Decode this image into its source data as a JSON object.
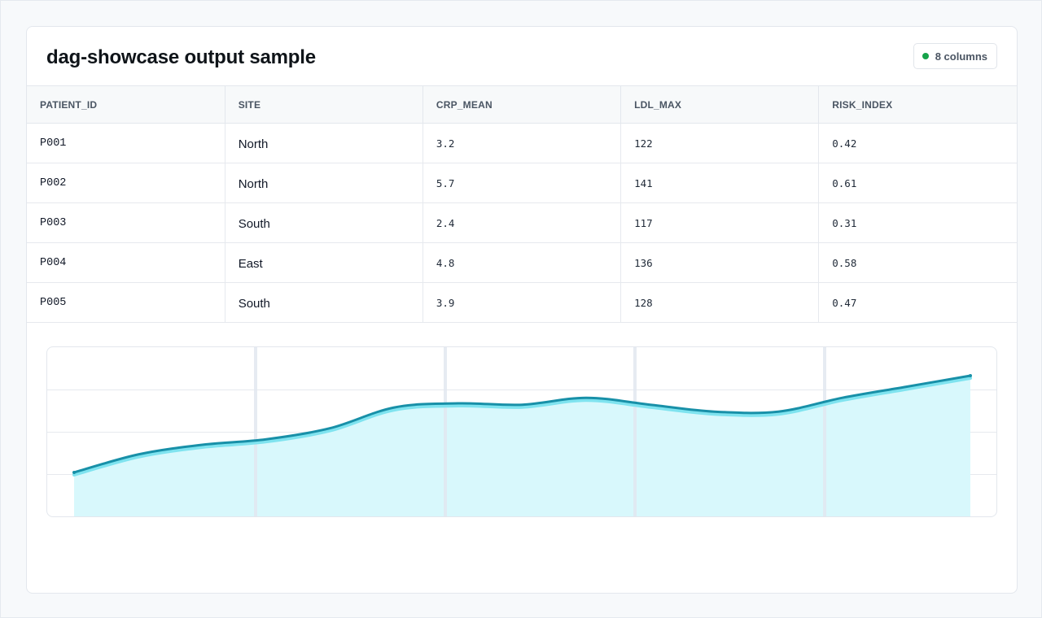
{
  "card": {
    "title": "dag-showcase output sample",
    "badge": {
      "label": "8 columns",
      "dot_color": "#16a34a"
    }
  },
  "table": {
    "columns": [
      "PATIENT_ID",
      "SITE",
      "CRP_MEAN",
      "LDL_MAX",
      "RISK_INDEX"
    ],
    "rows": [
      [
        "P001",
        "North",
        "3.2",
        "122",
        "0.42"
      ],
      [
        "P002",
        "North",
        "5.7",
        "141",
        "0.61"
      ],
      [
        "P003",
        "South",
        "2.4",
        "117",
        "0.31"
      ],
      [
        "P004",
        "East",
        "4.8",
        "136",
        "0.58"
      ],
      [
        "P005",
        "South",
        "3.9",
        "128",
        "0.47"
      ]
    ]
  },
  "chart_data": {
    "type": "area",
    "grid": true,
    "y_gridlines": 3,
    "x_gridlines": 4,
    "values": [
      30,
      43,
      50,
      54,
      62,
      77,
      80,
      79,
      84,
      79,
      74,
      74,
      84,
      92,
      100
    ],
    "ylim": [
      0,
      100
    ],
    "colors": {
      "line": "#1890a8",
      "line_highlight": "#7fe3ef",
      "fill": "#d8f8fc",
      "grid": "#e6e9ee",
      "vertical_grid": "#e2e8f0"
    }
  }
}
